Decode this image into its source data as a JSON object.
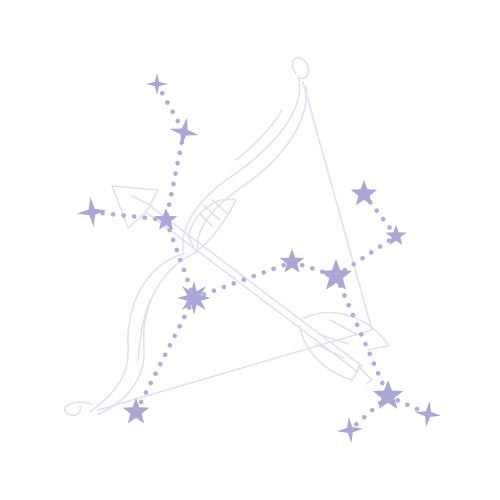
{
  "illustration": {
    "subject": "sagittarius-constellation",
    "icons": [
      "bow-icon",
      "arrow-icon",
      "star-icon"
    ],
    "colors": {
      "background": "#ffffff",
      "line_art": "#e2e0ef",
      "star": "#aaa6d6",
      "dots": "#b1addb"
    }
  }
}
